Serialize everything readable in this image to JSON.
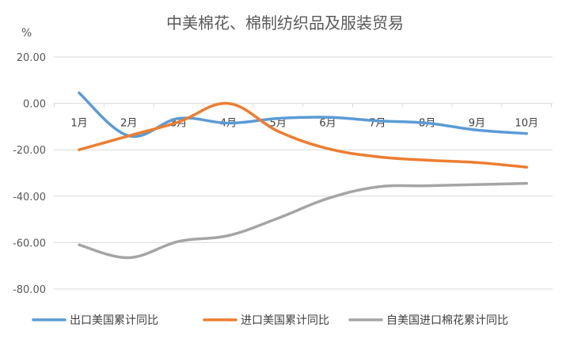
{
  "chart_data": {
    "type": "line",
    "title": "中美棉花、棉制纺织品及服装贸易",
    "unit_label": "%",
    "categories": [
      "1月",
      "2月",
      "3月",
      "4月",
      "5月",
      "6月",
      "7月",
      "8月",
      "9月",
      "10月"
    ],
    "ylim": [
      -80,
      20
    ],
    "yticks": [
      "20.00",
      "0.00",
      "-20.00",
      "-40.00",
      "-60.00",
      "-80.00"
    ],
    "ytick_values": [
      20,
      0,
      -20,
      -40,
      -60,
      -80
    ],
    "grid": true,
    "legend_position": "bottom",
    "series": [
      {
        "name": "出口美国累计同比",
        "color": "#5B9BD5",
        "values": [
          4.5,
          -14,
          -6.5,
          -8.5,
          -6.5,
          -6,
          -7.5,
          -8.5,
          -11.5,
          -13
        ]
      },
      {
        "name": "进口美国累计同比",
        "color": "#ED7D31",
        "values": [
          -20,
          -14,
          -8,
          0,
          -12,
          -19.5,
          -23,
          -24.5,
          -25.5,
          -27.5
        ]
      },
      {
        "name": "自美国进口棉花累计同比",
        "color": "#A5A5A5",
        "values": [
          -61,
          -66.5,
          -59.5,
          -57,
          -49.5,
          -41,
          -36,
          -35.5,
          -35,
          -34.5
        ]
      }
    ]
  }
}
